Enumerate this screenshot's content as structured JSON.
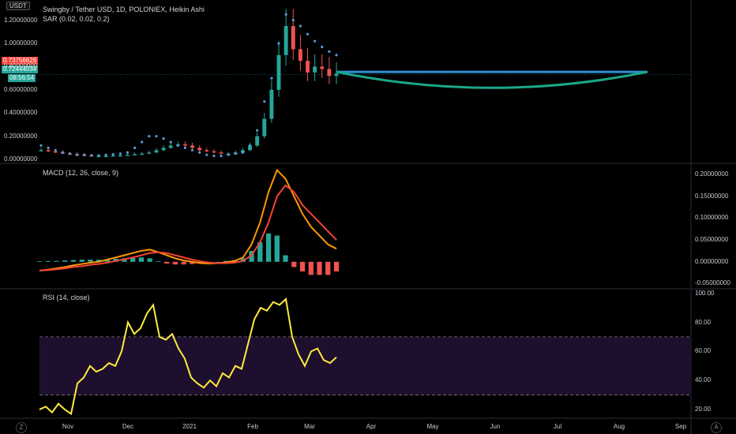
{
  "toolbar": {
    "currency": "USDT",
    "auto_label": "A",
    "zoom_label": "Z"
  },
  "pane_titles": {
    "main": "Swingby / Tether USD, 1D, POLONIEX, Heikin Ashi",
    "sar": "SAR (0.02, 0.02, 0.2)",
    "macd": "MACD (12, 26, close, 9)",
    "rsi": "RSI (14, close)"
  },
  "price_tags": {
    "red": "0.73756626",
    "green": "0.72444034",
    "countdown": "08:56:54"
  },
  "colors": {
    "bull": "#26a69a",
    "bear": "#ef5350",
    "sar": "#5b9bd5",
    "macd_line": "#ff9800",
    "signal_line": "#f44336",
    "rsi": "#ffeb3b",
    "rsi_band": "#1e0f2e",
    "drawing_line": "#2b8fd6",
    "drawing_arc": "#1aa88a"
  },
  "chart_data": [
    {
      "type": "line",
      "pane": "price",
      "y_ticks": [
        "1.20000000",
        "1.00000000",
        "0.80000000",
        "0.60000000",
        "0.40000000",
        "0.20000000",
        "0.00000000"
      ],
      "ylim": [
        -0.02,
        1.32
      ],
      "x_ticks": [
        "Nov",
        "Dec",
        "2021",
        "Feb",
        "Mar",
        "Apr",
        "May",
        "Jun",
        "Jul",
        "Aug",
        "Sep"
      ],
      "series": [
        {
          "values": [
            0.08,
            0.07,
            0.06,
            0.05,
            0.045,
            0.04,
            0.035,
            0.03,
            0.03,
            0.03,
            0.035,
            0.035,
            0.04,
            0.045,
            0.05,
            0.06,
            0.08,
            0.1,
            0.12,
            0.13,
            0.12,
            0.1,
            0.08,
            0.07,
            0.06,
            0.05,
            0.05,
            0.06,
            0.08,
            0.12,
            0.2,
            0.35,
            0.6,
            0.9,
            1.15,
            0.95,
            0.85,
            0.75,
            0.8,
            0.78,
            0.72,
            0.74
          ]
        },
        {
          "values": [
            0.12,
            0.1,
            0.08,
            0.06,
            0.05,
            0.04,
            0.04,
            0.035,
            0.035,
            0.04,
            0.045,
            0.05,
            0.06,
            0.1,
            0.15,
            0.2,
            0.2,
            0.18,
            0.15,
            0.12,
            0.1,
            0.08,
            0.06,
            0.04,
            0.03,
            0.03,
            0.04,
            0.05,
            0.06,
            0.12,
            0.25,
            0.5,
            0.7,
            1.0,
            1.25,
            1.2,
            1.15,
            1.08,
            1.02,
            0.97,
            0.93,
            0.9
          ]
        }
      ]
    },
    {
      "type": "line",
      "pane": "macd",
      "y_ticks": [
        "0.20000000",
        "0.15000000",
        "0.10000000",
        "0.05000000",
        "0.00000000",
        "-0.05000000"
      ],
      "ylim": [
        -0.06,
        0.22
      ],
      "series": [
        {
          "name": "MACD",
          "values": [
            -0.02,
            -0.018,
            -0.015,
            -0.012,
            -0.008,
            -0.005,
            -0.002,
            0.0,
            0.005,
            0.01,
            0.015,
            0.02,
            0.025,
            0.028,
            0.022,
            0.015,
            0.008,
            0.003,
            0.0,
            -0.003,
            -0.004,
            -0.003,
            -0.001,
            0.002,
            0.01,
            0.04,
            0.09,
            0.16,
            0.21,
            0.19,
            0.15,
            0.11,
            0.08,
            0.06,
            0.04,
            0.03
          ]
        },
        {
          "name": "Signal",
          "values": [
            -0.02,
            -0.019,
            -0.017,
            -0.015,
            -0.012,
            -0.01,
            -0.007,
            -0.005,
            -0.002,
            0.002,
            0.006,
            0.01,
            0.015,
            0.02,
            0.022,
            0.02,
            0.015,
            0.01,
            0.005,
            0.001,
            -0.002,
            -0.003,
            -0.003,
            -0.002,
            0.002,
            0.015,
            0.045,
            0.09,
            0.15,
            0.175,
            0.16,
            0.13,
            0.11,
            0.09,
            0.07,
            0.05
          ]
        }
      ],
      "histogram": [
        0.001,
        0.002,
        0.002,
        0.003,
        0.004,
        0.005,
        0.005,
        0.005,
        0.006,
        0.007,
        0.008,
        0.009,
        0.01,
        0.008,
        0.001,
        -0.004,
        -0.006,
        -0.006,
        -0.005,
        -0.004,
        -0.002,
        0.0,
        0.002,
        0.004,
        0.008,
        0.025,
        0.045,
        0.065,
        0.06,
        0.015,
        -0.012,
        -0.022,
        -0.03,
        -0.03,
        -0.03,
        -0.022
      ]
    },
    {
      "type": "line",
      "pane": "rsi",
      "y_ticks": [
        "100.00",
        "80.00",
        "60.00",
        "40.00",
        "20.00"
      ],
      "ylim": [
        14,
        102
      ],
      "band": [
        30,
        70
      ],
      "series": [
        {
          "values": [
            20,
            22,
            18,
            24,
            20,
            17,
            38,
            42,
            50,
            46,
            48,
            52,
            50,
            60,
            80,
            72,
            76,
            86,
            92,
            70,
            68,
            72,
            62,
            55,
            42,
            38,
            35,
            40,
            36,
            45,
            42,
            50,
            48,
            65,
            82,
            90,
            88,
            94,
            92,
            96,
            70,
            58,
            50,
            60,
            62,
            54,
            52,
            56
          ]
        }
      ]
    }
  ]
}
